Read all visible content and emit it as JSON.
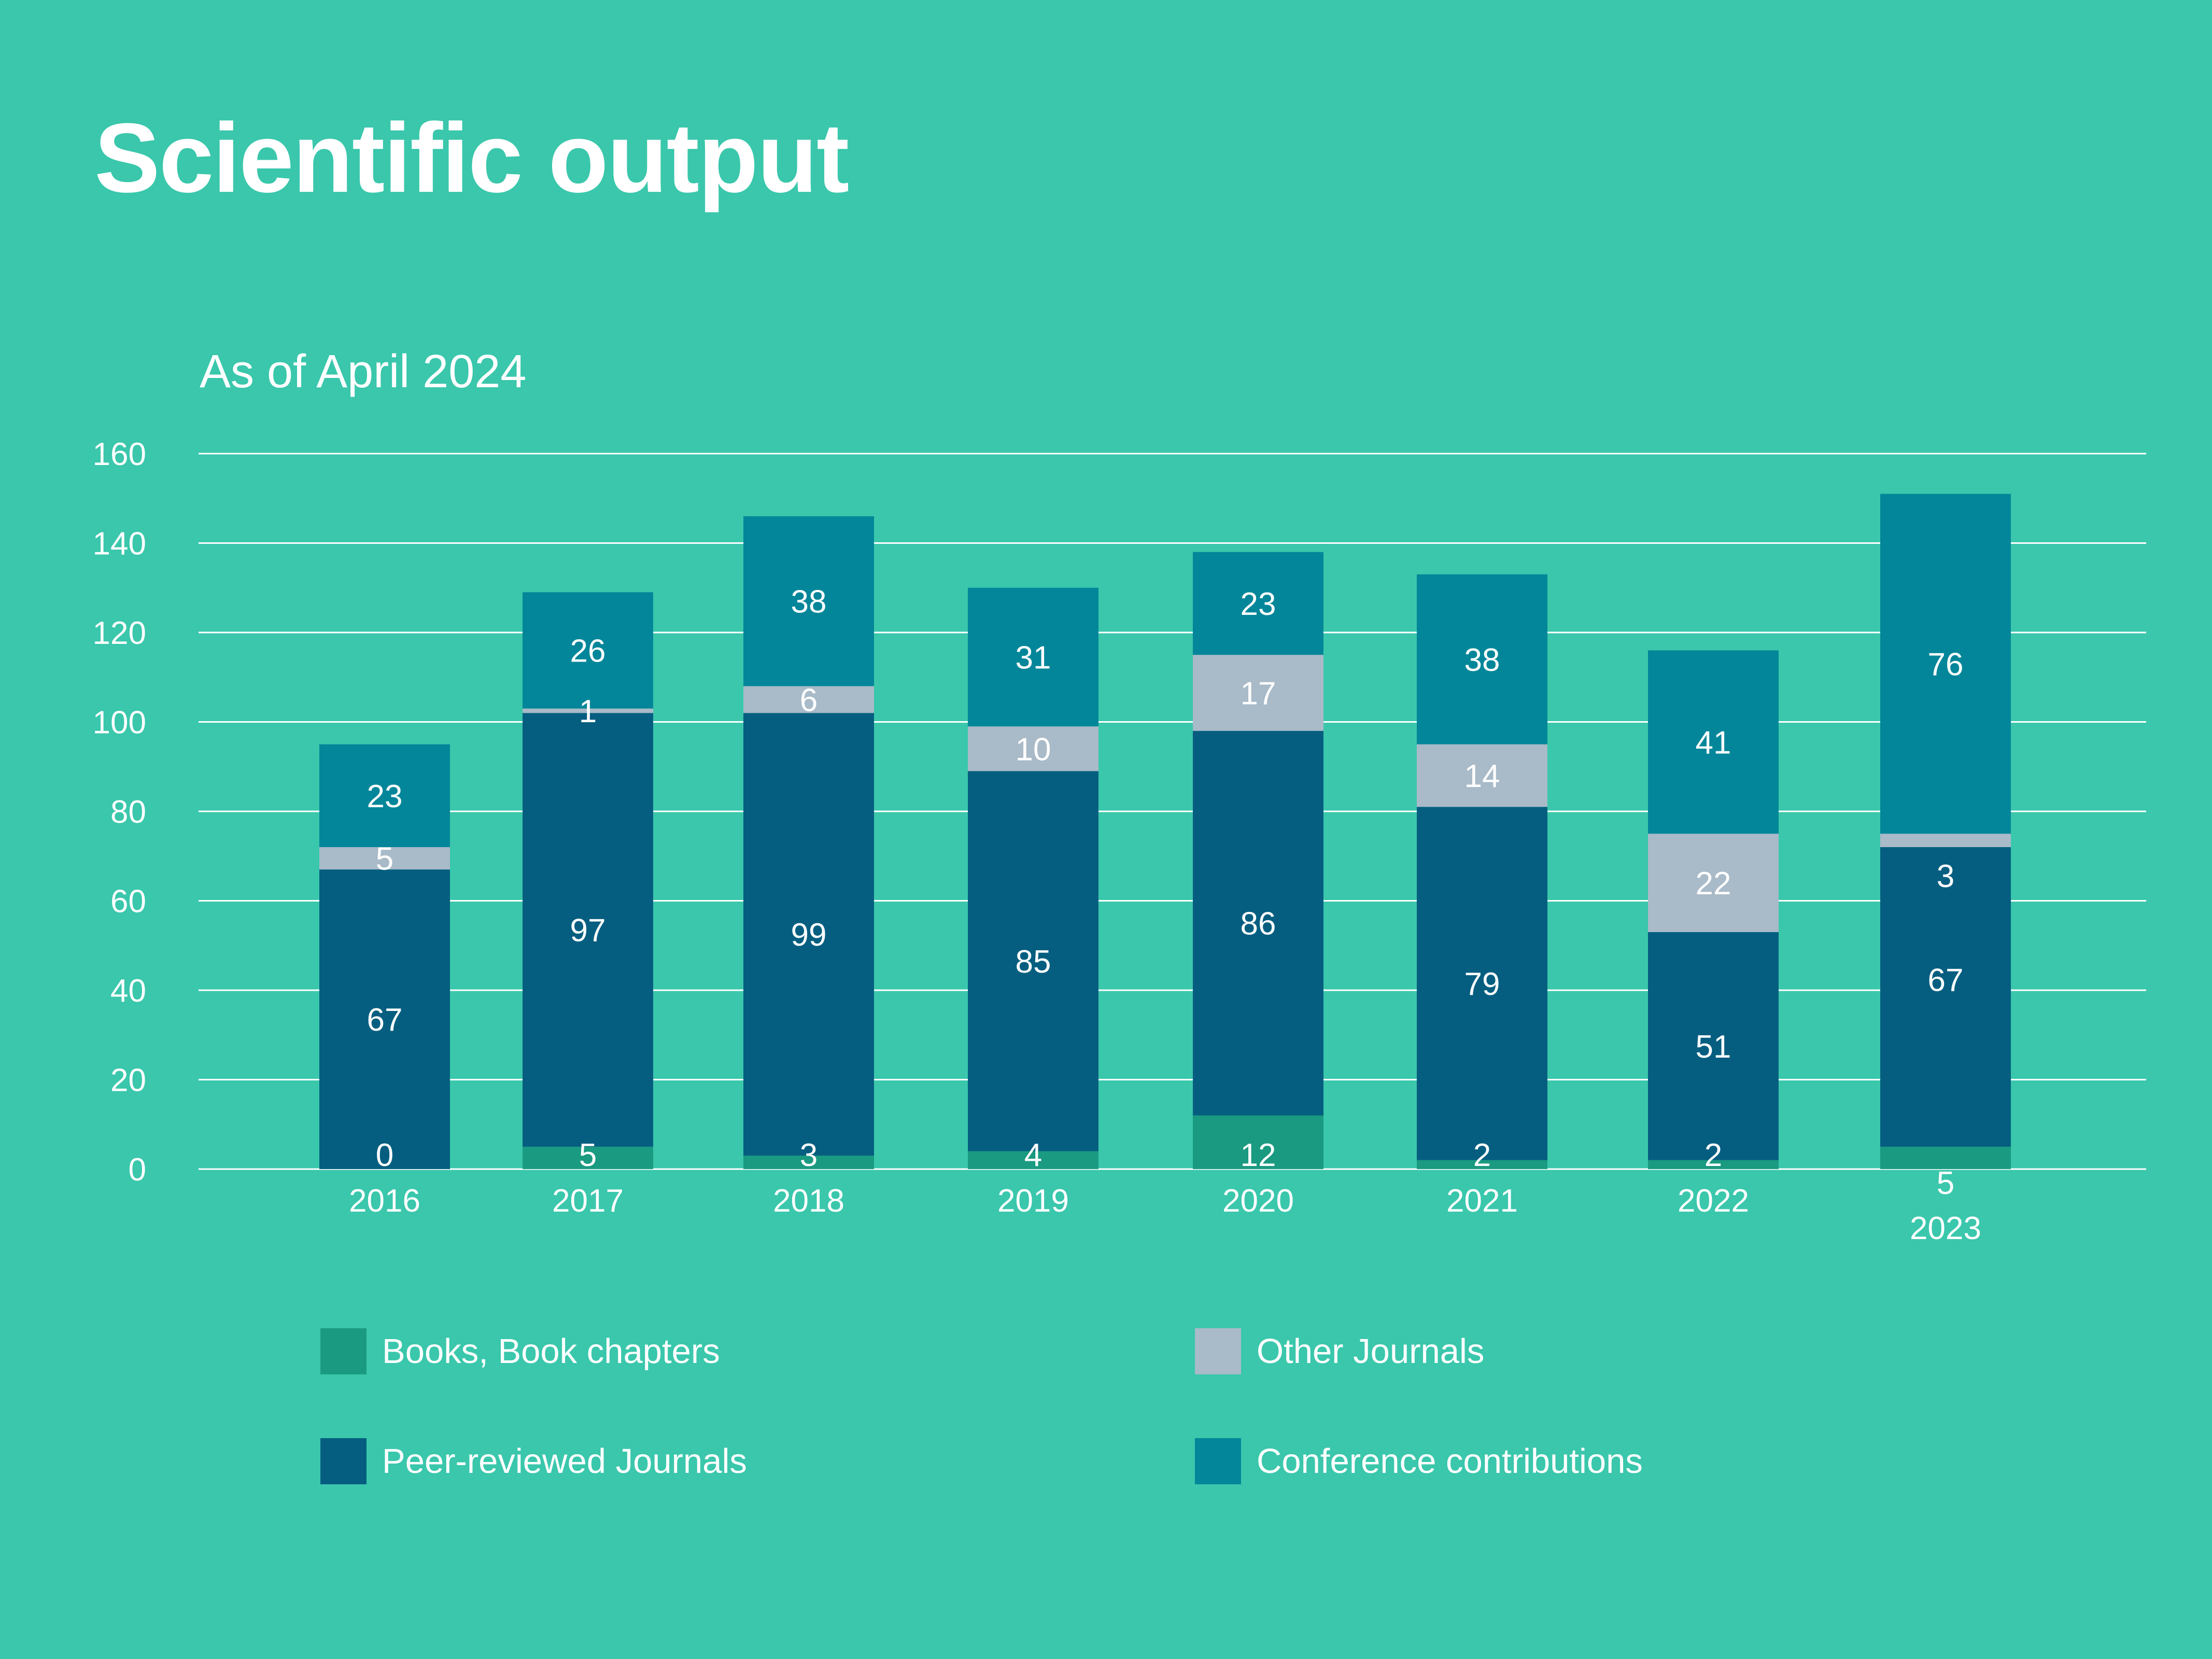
{
  "title": "Scientific output",
  "subtitle": "As of April 2024",
  "colors": {
    "background": "#3AC7AC",
    "books": "#1A9A80",
    "peer_reviewed": "#055E80",
    "other_journals": "#A9BAC8",
    "conference": "#038699",
    "gridline": "#FFFFFF",
    "text": "#FFFFFF"
  },
  "legend": [
    {
      "label": "Books, Book chapters",
      "color": "#1A9A80"
    },
    {
      "label": "Other Journals",
      "color": "#A9BAC8"
    },
    {
      "label": "Peer-reviewed Journals",
      "color": "#055E80"
    },
    {
      "label": "Conference contributions",
      "color": "#038699"
    }
  ],
  "chart_data": {
    "type": "bar",
    "stacked": true,
    "categories": [
      "2016",
      "2017",
      "2018",
      "2019",
      "2020",
      "2021",
      "2022",
      "2023"
    ],
    "series": [
      {
        "name": "Books, Book chapters",
        "color": "#1A9A80",
        "values": [
          0,
          5,
          3,
          4,
          12,
          2,
          2,
          5
        ]
      },
      {
        "name": "Peer-reviewed Journals",
        "color": "#055E80",
        "values": [
          67,
          97,
          99,
          85,
          86,
          79,
          51,
          67
        ]
      },
      {
        "name": "Other Journals",
        "color": "#A9BAC8",
        "values": [
          5,
          1,
          6,
          10,
          17,
          14,
          22,
          3
        ]
      },
      {
        "name": "Conference contributions",
        "color": "#038699",
        "values": [
          23,
          26,
          38,
          31,
          23,
          38,
          41,
          76
        ]
      }
    ],
    "ylim": [
      0,
      160
    ],
    "yticks": [
      "0",
      "20",
      "40",
      "60",
      "80",
      "100",
      "120",
      "140",
      "160"
    ],
    "grid": true,
    "legend_position": "bottom"
  }
}
